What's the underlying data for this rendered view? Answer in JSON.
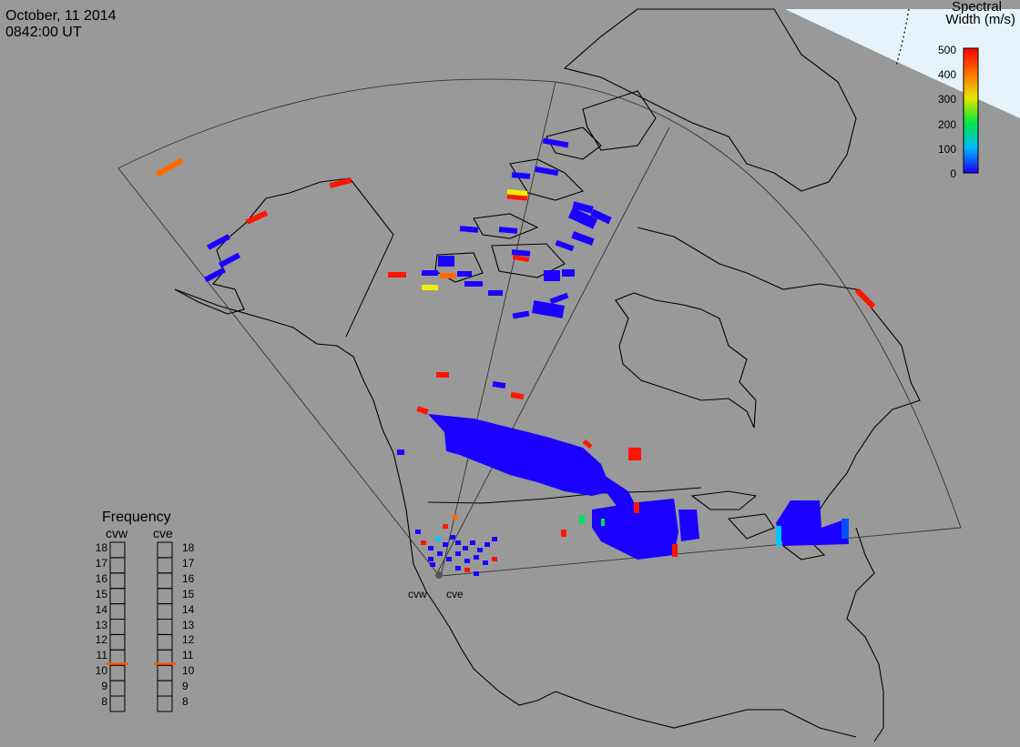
{
  "header": {
    "date": "October, 11 2014",
    "time": "0842:00 UT"
  },
  "colorbar": {
    "title_line1": "Spectral",
    "title_line2": "Width (m/s)",
    "ticks": [
      "500",
      "400",
      "300",
      "200",
      "100",
      "0"
    ],
    "min": 0,
    "max": 500
  },
  "radars": {
    "west": "cvw",
    "east": "cve"
  },
  "frequency_panel": {
    "title": "Frequency",
    "radar_west": "cvw",
    "radar_east": "cve",
    "levels": [
      "18",
      "17",
      "16",
      "15",
      "14",
      "13",
      "12",
      "11",
      "10",
      "9",
      "8"
    ],
    "cvw_freq_mhz": 10.6,
    "cve_freq_mhz": 10.6,
    "marker_color": "#ff5500"
  },
  "colors": {
    "background": "#999999",
    "sunlit_region": "#e6f3fb",
    "low": "#1a00ff",
    "high": "#ff0000"
  }
}
